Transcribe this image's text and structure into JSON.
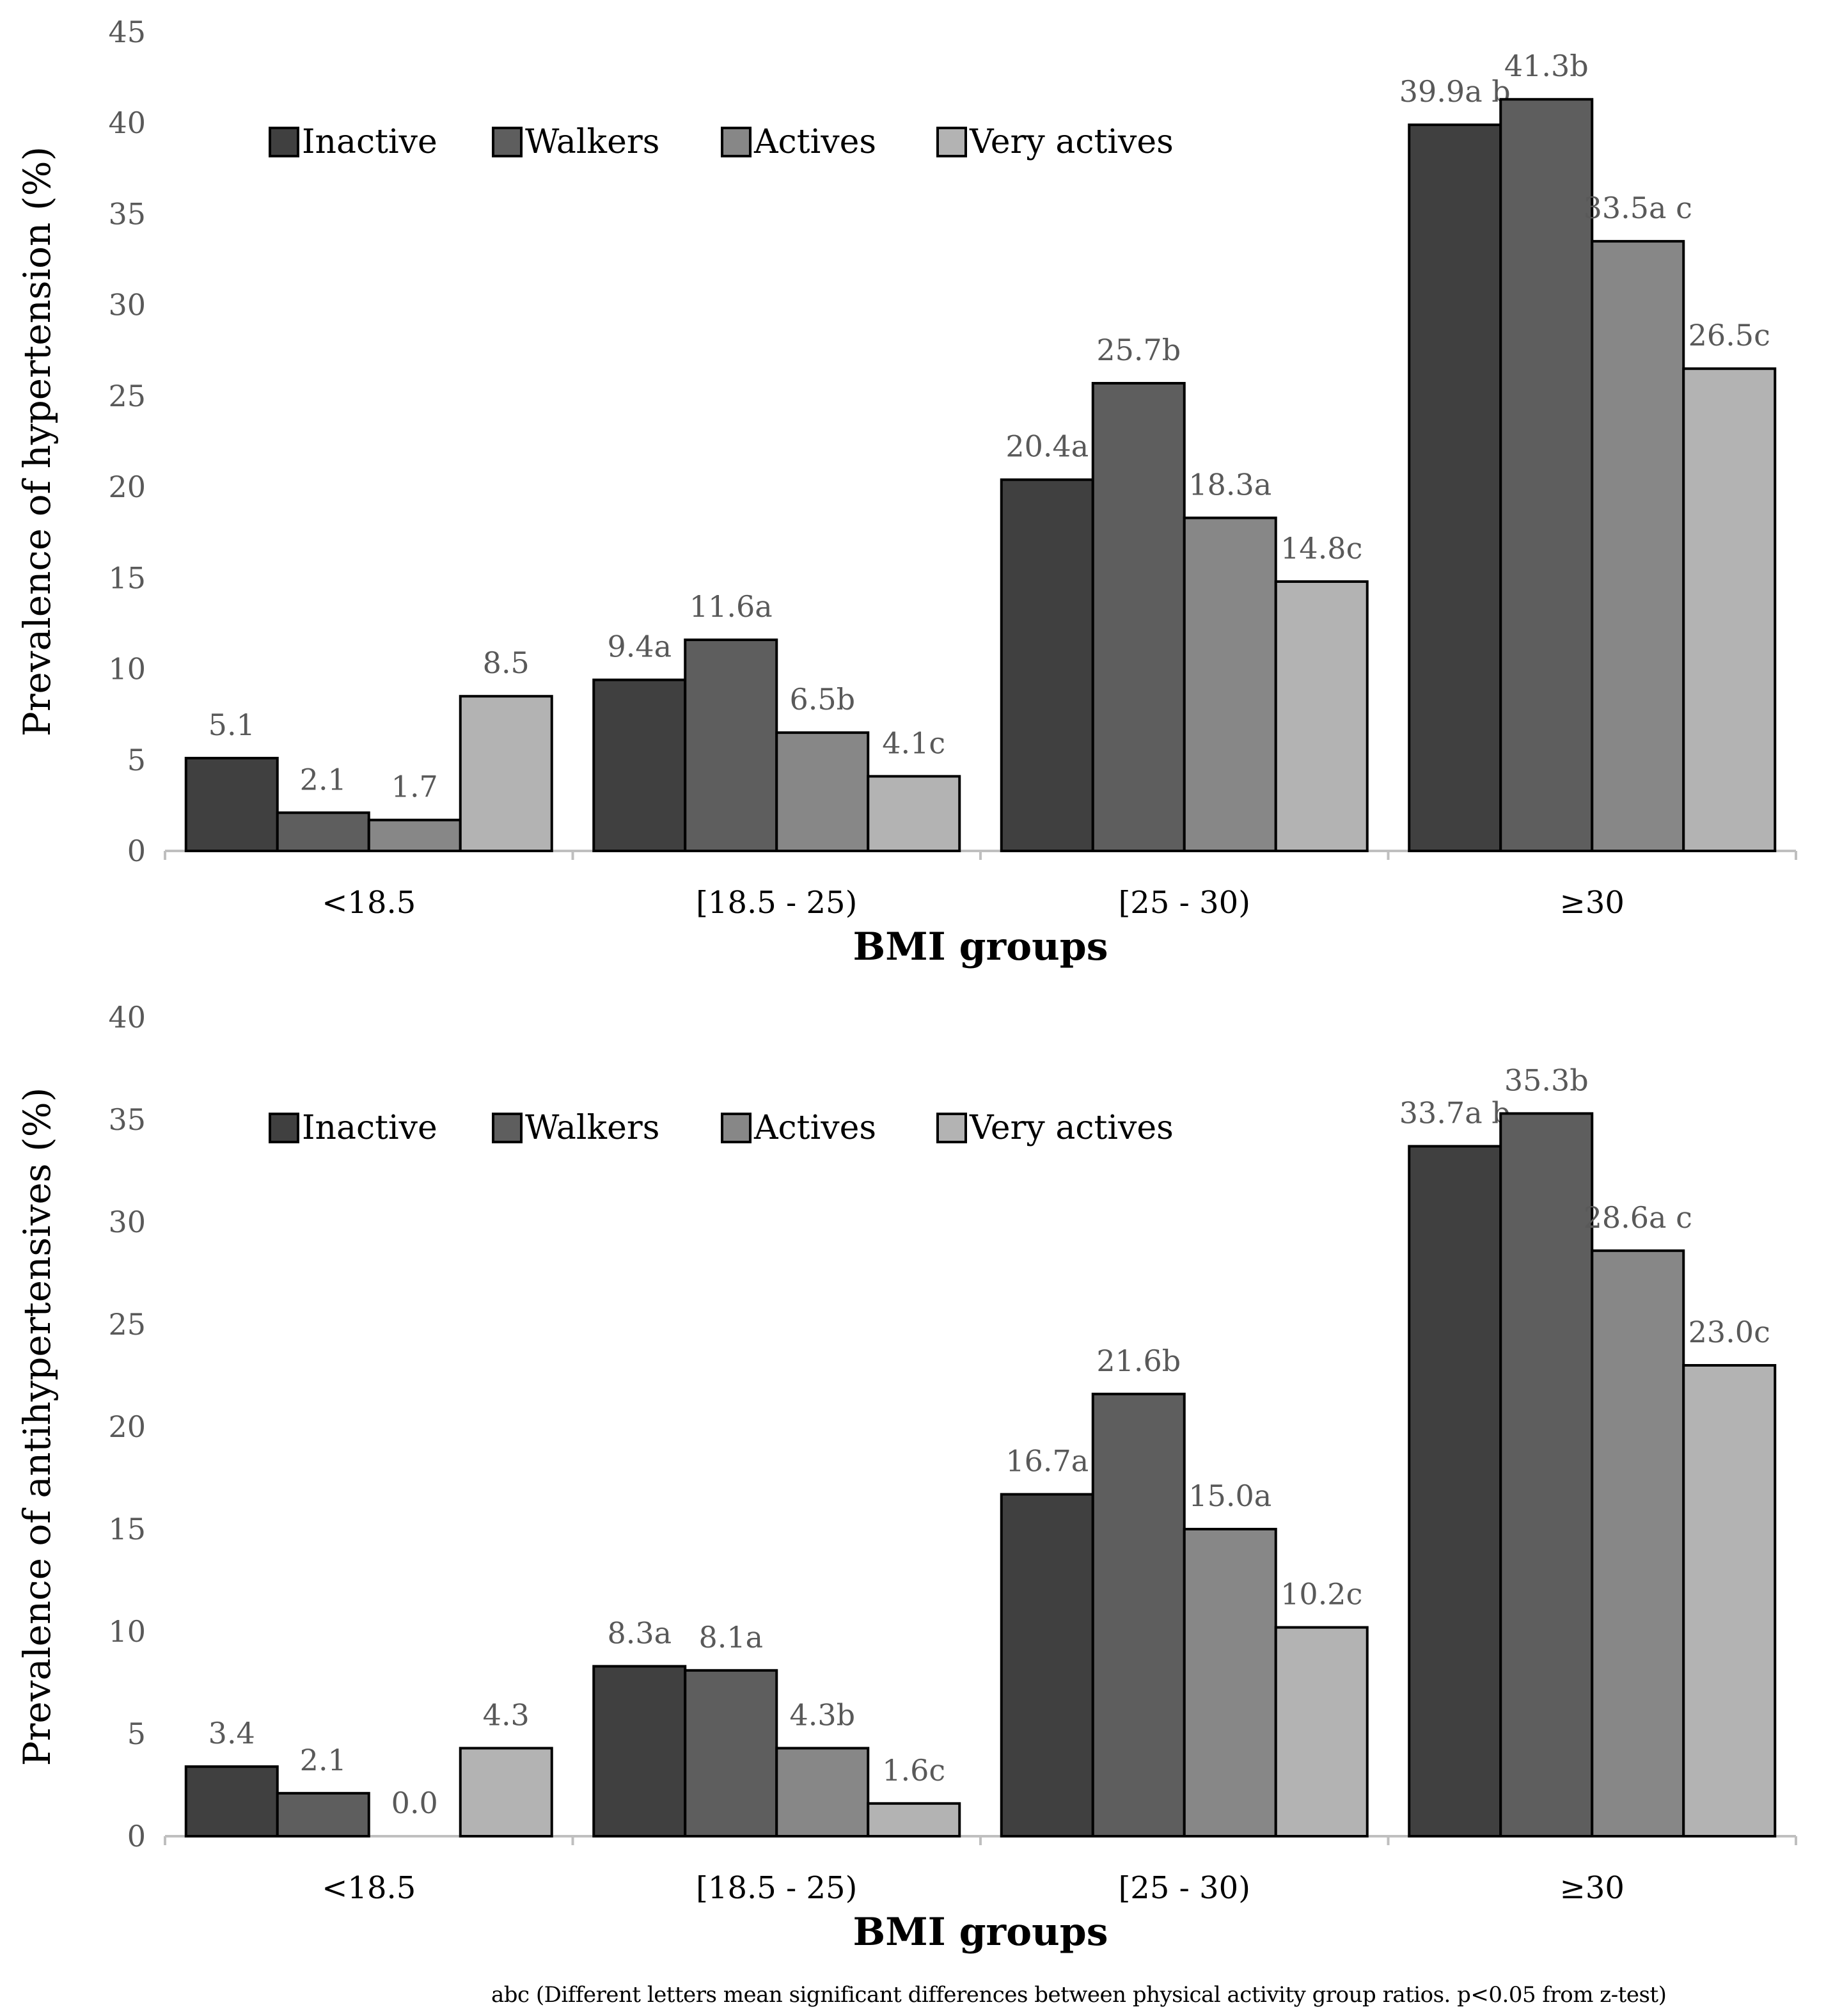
{
  "chart_data": [
    {
      "type": "bar",
      "ylabel": "Prevalence of hypertension (%)",
      "xlabel": "BMI groups",
      "ylim": [
        0,
        45
      ],
      "yticks": [
        "0",
        "5",
        "10",
        "15",
        "20",
        "25",
        "30",
        "35",
        "40",
        "45"
      ],
      "categories": [
        "<18.5",
        "[18.5 - 25)",
        "[25 - 30)",
        "≥30"
      ],
      "legend_position": "top-left",
      "series": [
        {
          "name": "Inactive",
          "color": "#404040",
          "values": [
            5.1,
            9.4,
            20.4,
            39.9
          ],
          "labels": [
            "5.1",
            "9.4a",
            "20.4a",
            "39.9a b"
          ]
        },
        {
          "name": "Walkers",
          "color": "#5e5e5e",
          "values": [
            2.1,
            11.6,
            25.7,
            41.3
          ],
          "labels": [
            "2.1",
            "11.6a",
            "25.7b",
            "41.3b"
          ]
        },
        {
          "name": "Actives",
          "color": "#878787",
          "values": [
            1.7,
            6.5,
            18.3,
            33.5
          ],
          "labels": [
            "1.7",
            "6.5b",
            "18.3a",
            "33.5a c"
          ]
        },
        {
          "name": "Very actives",
          "color": "#b3b3b3",
          "values": [
            8.5,
            4.1,
            14.8,
            26.5
          ],
          "labels": [
            "8.5",
            "4.1c",
            "14.8c",
            "26.5c"
          ]
        }
      ]
    },
    {
      "type": "bar",
      "ylabel": "Prevalence of antihypertensives (%)",
      "xlabel": "BMI groups",
      "ylim": [
        0,
        40
      ],
      "yticks": [
        "0",
        "5",
        "10",
        "15",
        "20",
        "25",
        "30",
        "35",
        "40"
      ],
      "categories": [
        "<18.5",
        "[18.5 - 25)",
        "[25 - 30)",
        "≥30"
      ],
      "legend_position": "top-left",
      "series": [
        {
          "name": "Inactive",
          "color": "#404040",
          "values": [
            3.4,
            8.3,
            16.7,
            33.7
          ],
          "labels": [
            "3.4",
            "8.3a",
            "16.7a",
            "33.7a b"
          ]
        },
        {
          "name": "Walkers",
          "color": "#5e5e5e",
          "values": [
            2.1,
            8.1,
            21.6,
            35.3
          ],
          "labels": [
            "2.1",
            "8.1a",
            "21.6b",
            "35.3b"
          ]
        },
        {
          "name": "Actives",
          "color": "#878787",
          "values": [
            0.0,
            4.3,
            15.0,
            28.6
          ],
          "labels": [
            "0.0",
            "4.3b",
            "15.0a",
            "28.6a c"
          ]
        },
        {
          "name": "Very actives",
          "color": "#b3b3b3",
          "values": [
            4.3,
            1.6,
            10.2,
            23.0
          ],
          "labels": [
            "4.3",
            "1.6c",
            "10.2c",
            "23.0c"
          ]
        }
      ]
    }
  ],
  "footnote": "abc (Different letters mean significant differences between physical activity group ratios. p<0.05 from z-test)"
}
